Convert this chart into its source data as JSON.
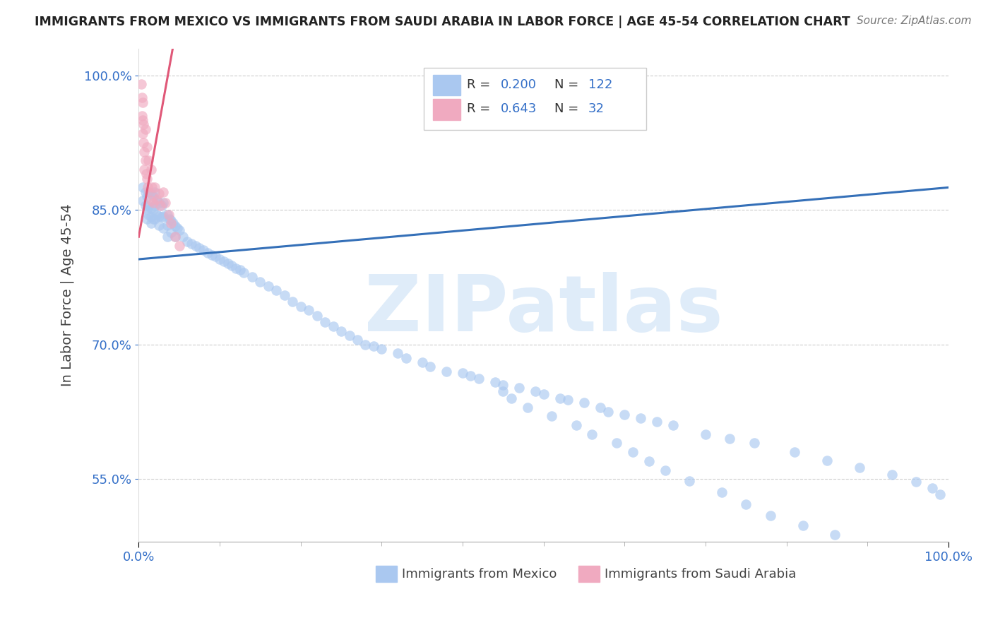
{
  "title": "IMMIGRANTS FROM MEXICO VS IMMIGRANTS FROM SAUDI ARABIA IN LABOR FORCE | AGE 45-54 CORRELATION CHART",
  "source": "Source: ZipAtlas.com",
  "ylabel": "In Labor Force | Age 45-54",
  "xlim": [
    0.0,
    1.0
  ],
  "ylim": [
    0.48,
    1.03
  ],
  "ytick_labels": [
    "55.0%",
    "70.0%",
    "85.0%",
    "100.0%"
  ],
  "yticks": [
    0.55,
    0.7,
    0.85,
    1.0
  ],
  "blue_color": "#aac8f0",
  "pink_color": "#f0aac0",
  "blue_line_color": "#3570b8",
  "pink_line_color": "#e05878",
  "text_color_blue": "#3570c8",
  "background_color": "#ffffff",
  "watermark": "ZIPatlas",
  "r1": "0.200",
  "n1": "122",
  "r2": "0.643",
  "n2": "32",
  "mexico_x": [
    0.005,
    0.005,
    0.008,
    0.008,
    0.01,
    0.01,
    0.01,
    0.012,
    0.012,
    0.012,
    0.015,
    0.015,
    0.015,
    0.015,
    0.018,
    0.018,
    0.018,
    0.02,
    0.02,
    0.02,
    0.022,
    0.022,
    0.025,
    0.025,
    0.025,
    0.028,
    0.028,
    0.03,
    0.03,
    0.03,
    0.035,
    0.035,
    0.035,
    0.038,
    0.04,
    0.04,
    0.042,
    0.045,
    0.045,
    0.048,
    0.05,
    0.055,
    0.06,
    0.065,
    0.07,
    0.075,
    0.08,
    0.085,
    0.09,
    0.095,
    0.1,
    0.105,
    0.11,
    0.115,
    0.12,
    0.125,
    0.13,
    0.14,
    0.15,
    0.16,
    0.17,
    0.18,
    0.19,
    0.2,
    0.21,
    0.22,
    0.23,
    0.24,
    0.25,
    0.26,
    0.27,
    0.28,
    0.29,
    0.3,
    0.32,
    0.33,
    0.35,
    0.36,
    0.38,
    0.4,
    0.41,
    0.42,
    0.44,
    0.45,
    0.47,
    0.49,
    0.5,
    0.52,
    0.53,
    0.55,
    0.57,
    0.58,
    0.6,
    0.62,
    0.64,
    0.66,
    0.7,
    0.73,
    0.76,
    0.81,
    0.85,
    0.89,
    0.93,
    0.96,
    0.98,
    0.99,
    0.45,
    0.46,
    0.48,
    0.51,
    0.54,
    0.56,
    0.59,
    0.61,
    0.63,
    0.65,
    0.68,
    0.72,
    0.75,
    0.78,
    0.82,
    0.86
  ],
  "mexico_y": [
    0.875,
    0.86,
    0.87,
    0.855,
    0.865,
    0.85,
    0.84,
    0.87,
    0.855,
    0.845,
    0.868,
    0.852,
    0.842,
    0.835,
    0.865,
    0.85,
    0.84,
    0.87,
    0.855,
    0.84,
    0.86,
    0.845,
    0.858,
    0.843,
    0.833,
    0.855,
    0.842,
    0.858,
    0.843,
    0.83,
    0.845,
    0.833,
    0.82,
    0.84,
    0.838,
    0.825,
    0.835,
    0.832,
    0.82,
    0.83,
    0.827,
    0.82,
    0.815,
    0.812,
    0.81,
    0.808,
    0.805,
    0.802,
    0.8,
    0.798,
    0.795,
    0.793,
    0.79,
    0.788,
    0.785,
    0.783,
    0.78,
    0.775,
    0.77,
    0.765,
    0.76,
    0.755,
    0.748,
    0.742,
    0.738,
    0.732,
    0.725,
    0.72,
    0.715,
    0.71,
    0.705,
    0.7,
    0.698,
    0.695,
    0.69,
    0.685,
    0.68,
    0.675,
    0.67,
    0.668,
    0.665,
    0.662,
    0.658,
    0.655,
    0.652,
    0.648,
    0.645,
    0.64,
    0.638,
    0.635,
    0.63,
    0.625,
    0.622,
    0.618,
    0.614,
    0.61,
    0.6,
    0.595,
    0.59,
    0.58,
    0.571,
    0.563,
    0.555,
    0.547,
    0.54,
    0.533,
    0.648,
    0.64,
    0.63,
    0.62,
    0.61,
    0.6,
    0.59,
    0.58,
    0.57,
    0.56,
    0.548,
    0.535,
    0.522,
    0.509,
    0.498,
    0.488
  ],
  "saudi_x": [
    0.003,
    0.004,
    0.004,
    0.005,
    0.005,
    0.005,
    0.006,
    0.006,
    0.007,
    0.007,
    0.008,
    0.008,
    0.009,
    0.01,
    0.01,
    0.011,
    0.012,
    0.013,
    0.015,
    0.015,
    0.016,
    0.018,
    0.02,
    0.022,
    0.025,
    0.027,
    0.03,
    0.033,
    0.037,
    0.04,
    0.045,
    0.05
  ],
  "saudi_y": [
    0.99,
    0.975,
    0.955,
    0.97,
    0.95,
    0.935,
    0.945,
    0.925,
    0.915,
    0.895,
    0.94,
    0.905,
    0.89,
    0.92,
    0.885,
    0.875,
    0.905,
    0.87,
    0.895,
    0.86,
    0.875,
    0.858,
    0.875,
    0.862,
    0.868,
    0.855,
    0.87,
    0.858,
    0.845,
    0.835,
    0.82,
    0.81
  ],
  "blue_line_x": [
    0.0,
    1.0
  ],
  "blue_line_y": [
    0.795,
    0.875
  ],
  "pink_line_x0": 0.0,
  "pink_line_y0": 0.82,
  "pink_line_slope": 5.0
}
